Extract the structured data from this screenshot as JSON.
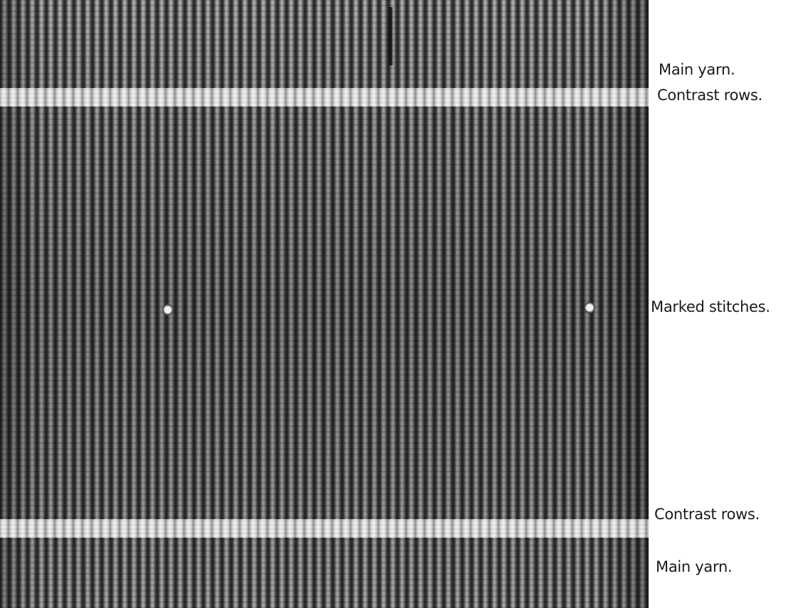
{
  "swatch": {
    "description_icon": "knitted-fabric-swatch",
    "colors": {
      "main_yarn": "#6f6f6f",
      "contrast_rows": "#f2f2f2",
      "text": "#1a1a1a"
    }
  },
  "labels": {
    "main_yarn_top": "Main yarn.",
    "contrast_rows_top": "Contrast rows.",
    "marked_stitches": "Marked stitches.",
    "contrast_rows_bottom": "Contrast rows.",
    "main_yarn_bottom": "Main yarn."
  }
}
